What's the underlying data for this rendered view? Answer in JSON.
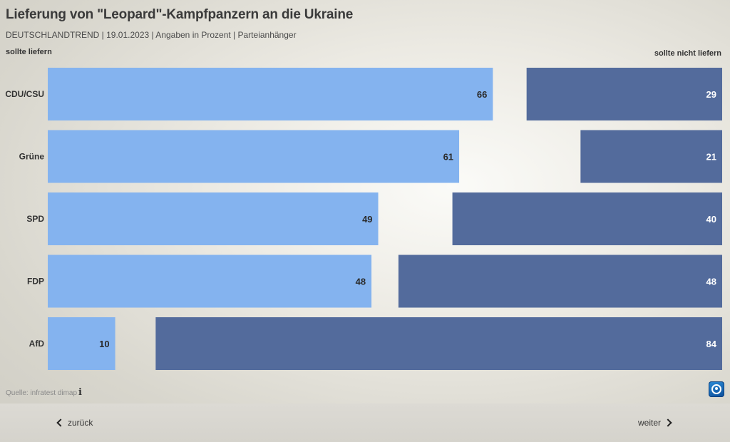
{
  "header": {
    "title": "Lieferung von \"Leopard\"-Kampfpanzern an die Ukraine",
    "subtitle": "DEUTSCHLANDTREND | 19.01.2023 | Angaben in Prozent | Parteianhänger"
  },
  "chart_data": {
    "type": "bar",
    "title": "Lieferung von \"Leopard\"-Kampfpanzern an die Ukraine",
    "categories": [
      "CDU/CSU",
      "Grüne",
      "SPD",
      "FDP",
      "AfD"
    ],
    "series": [
      {
        "name": "sollte liefern",
        "values": [
          66,
          61,
          49,
          48,
          10
        ],
        "color": "#84b3ef"
      },
      {
        "name": "sollte nicht liefern",
        "values": [
          29,
          21,
          40,
          48,
          84
        ],
        "color": "#536b9c"
      }
    ],
    "xlim": [
      0,
      100
    ],
    "legend": "top"
  },
  "footer": {
    "source": "Quelle: infratest dimap",
    "info_icon": "i",
    "logo_icon": "tagesschau-logo-icon"
  },
  "nav": {
    "back_label": "zurück",
    "next_label": "weiter"
  }
}
